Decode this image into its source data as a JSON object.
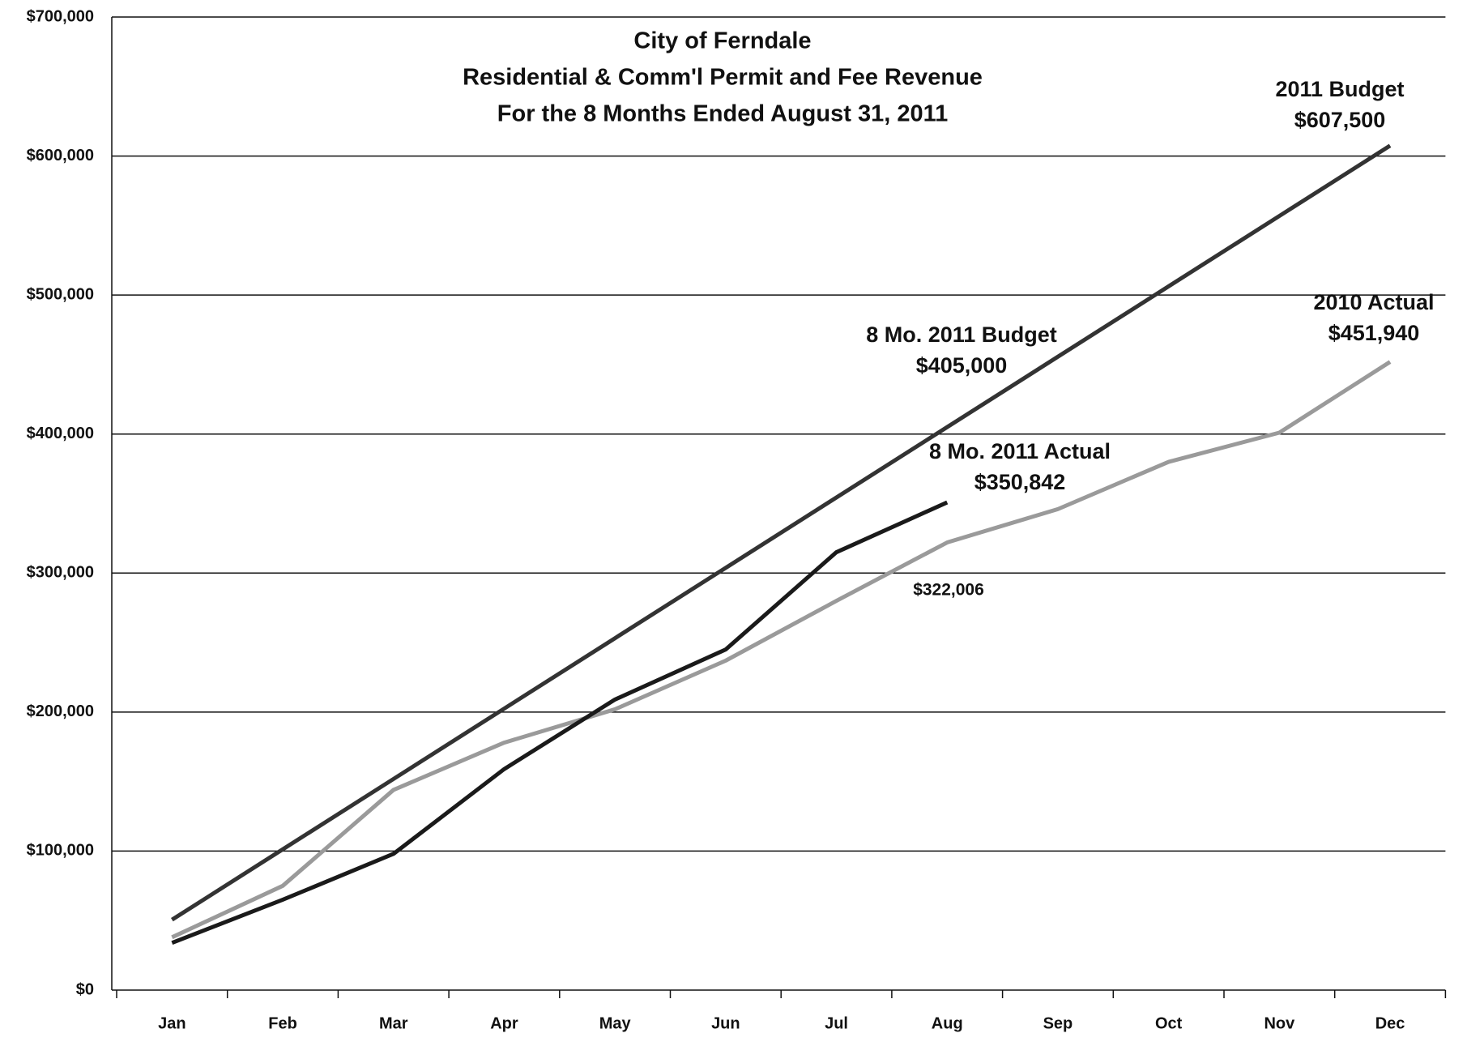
{
  "chart_data": {
    "type": "line",
    "title": [
      "City of Ferndale",
      "Residential & Comm'l Permit and Fee Revenue",
      "For the 8 Months Ended August 31, 2011"
    ],
    "categories": [
      "Jan",
      "Feb",
      "Mar",
      "Apr",
      "May",
      "Jun",
      "Jul",
      "Aug",
      "Sep",
      "Oct",
      "Nov",
      "Dec"
    ],
    "series": [
      {
        "color": "#333333",
        "values": [
          50625,
          101250,
          151875,
          202500,
          253125,
          303750,
          354375,
          405000,
          455625,
          506250,
          556875,
          607500
        ]
      },
      {
        "color": "#9a9a9a",
        "values": [
          38000,
          75000,
          144000,
          178000,
          202000,
          237000,
          280000,
          322006,
          346000,
          380000,
          401000,
          451940
        ]
      },
      {
        "color": "#1a1a1a",
        "values": [
          34000,
          65000,
          98000,
          159000,
          209000,
          245000,
          315000,
          350842,
          null,
          null,
          null,
          null
        ]
      }
    ],
    "ylim": [
      0,
      700000
    ],
    "yticks": [
      {
        "value": 0,
        "label": "$0"
      },
      {
        "value": 100000,
        "label": "$100,000"
      },
      {
        "value": 200000,
        "label": "$200,000"
      },
      {
        "value": 300000,
        "label": "$300,000"
      },
      {
        "value": 400000,
        "label": "$400,000"
      },
      {
        "value": 500000,
        "label": "$500,000"
      },
      {
        "value": 600000,
        "label": "$600,000"
      },
      {
        "value": 700000,
        "label": "$700,000"
      }
    ],
    "grid": true,
    "annotations": [
      {
        "lines": [
          "2011 Budget",
          "$607,500"
        ]
      },
      {
        "lines": [
          "8 Mo. 2011 Budget",
          "$405,000"
        ]
      },
      {
        "lines": [
          "8 Mo. 2011 Actual",
          "$350,842"
        ]
      },
      {
        "lines": [
          "2010 Actual",
          "$451,940"
        ]
      },
      {
        "lines": [
          "$322,006"
        ]
      }
    ]
  }
}
